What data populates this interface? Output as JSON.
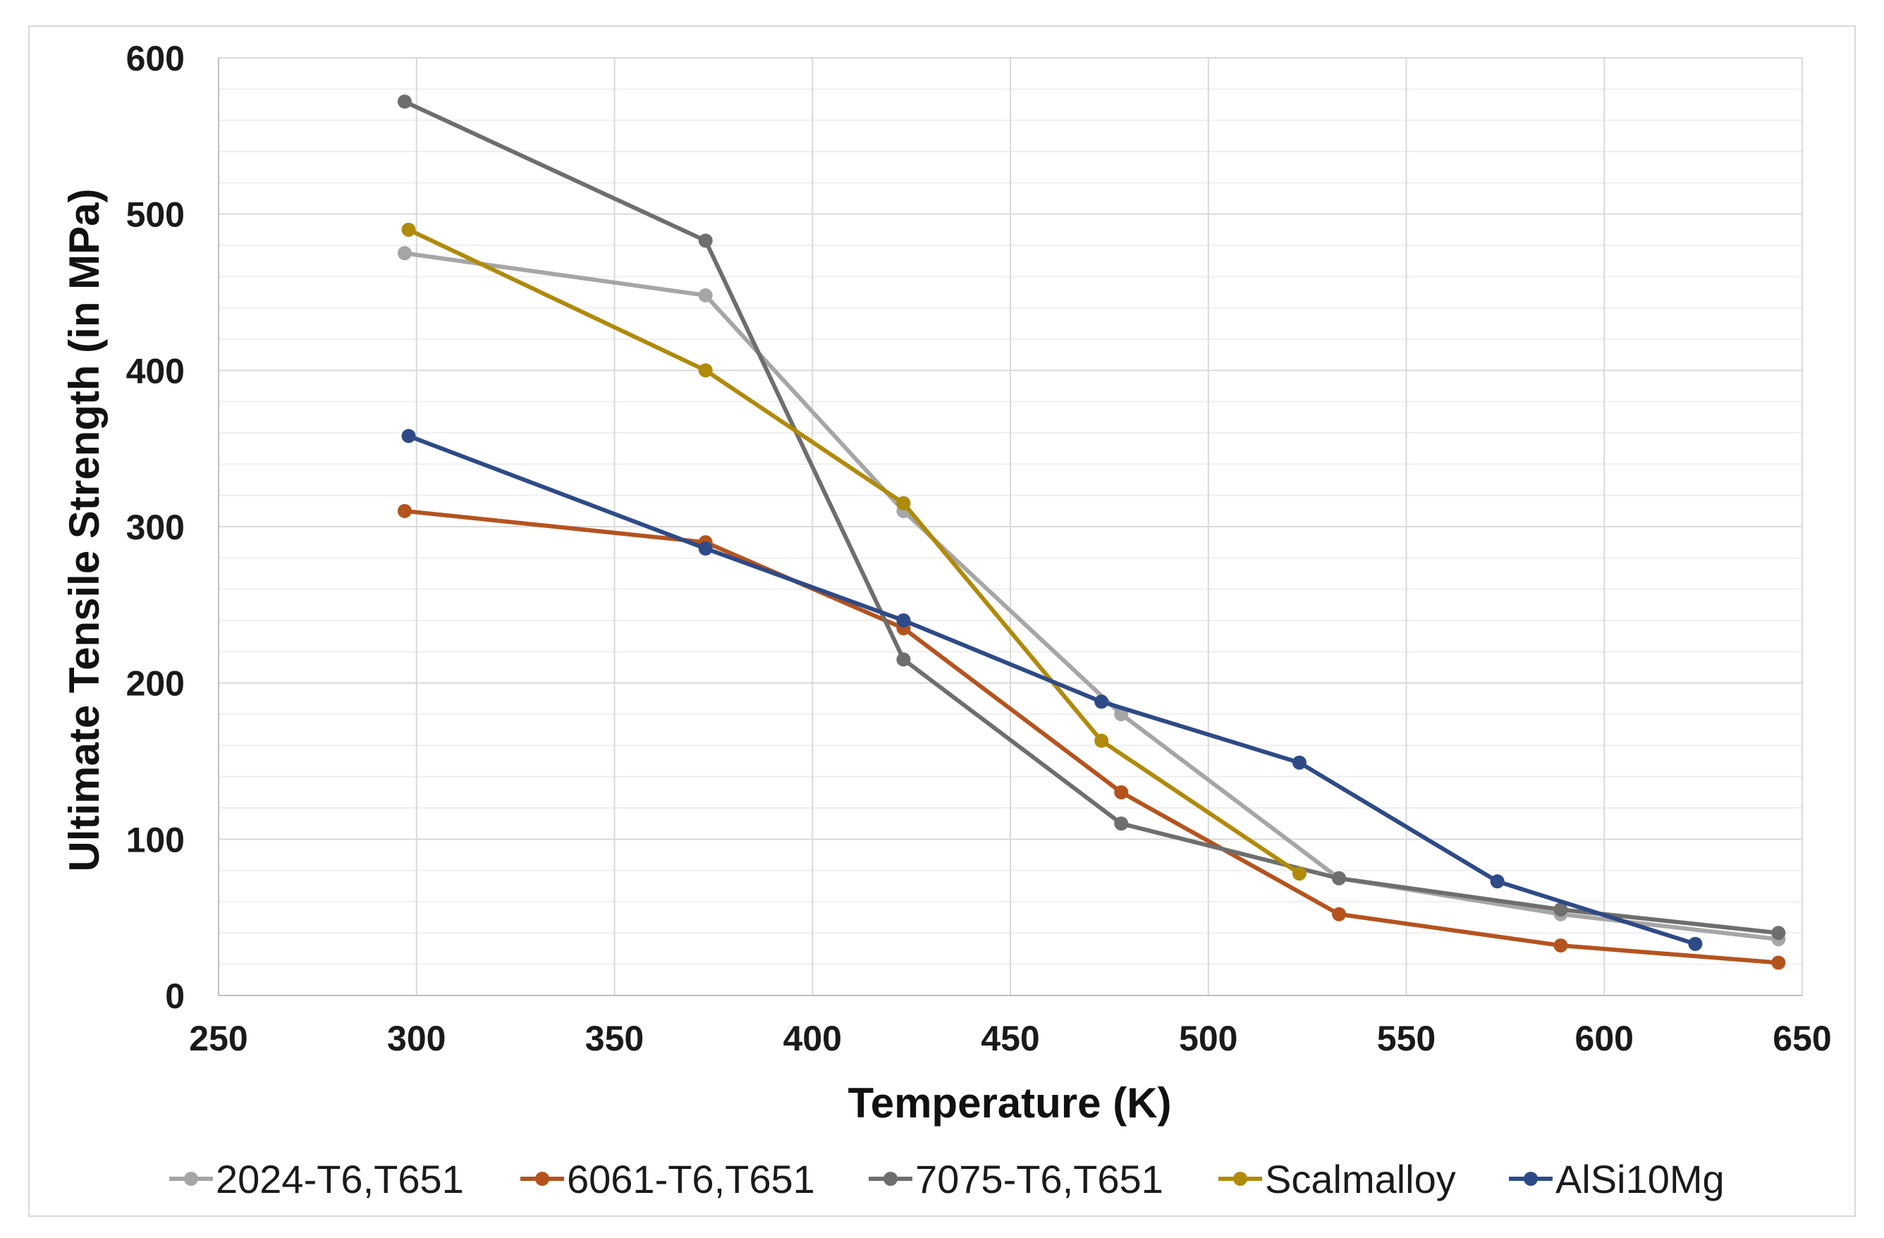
{
  "chart_data": {
    "type": "line",
    "title": "",
    "xlabel": "Temperature (K)",
    "ylabel": "Ultimate Tensile Strength (in MPa)",
    "xlim": [
      250,
      650
    ],
    "ylim": [
      0,
      600
    ],
    "x_ticks": [
      250,
      300,
      350,
      400,
      450,
      500,
      550,
      600,
      650
    ],
    "y_ticks": [
      0,
      100,
      200,
      300,
      400,
      500,
      600
    ],
    "grid": true,
    "legend_position": "bottom",
    "series": [
      {
        "name": "2024-T6,T651",
        "color": "#a6a6a6",
        "x": [
          297,
          373,
          423,
          478,
          533,
          589,
          644
        ],
        "y": [
          475,
          448,
          310,
          180,
          75,
          52,
          36
        ]
      },
      {
        "name": "6061-T6,T651",
        "color": "#b5531e",
        "x": [
          297,
          373,
          423,
          478,
          533,
          589,
          644
        ],
        "y": [
          310,
          290,
          235,
          130,
          52,
          32,
          21
        ]
      },
      {
        "name": "7075-T6,T651",
        "color": "#6e6e6e",
        "x": [
          297,
          373,
          423,
          478,
          533,
          589,
          644
        ],
        "y": [
          572,
          483,
          215,
          110,
          75,
          55,
          40
        ]
      },
      {
        "name": "Scalmalloy",
        "color": "#b08a0a",
        "x": [
          298,
          373,
          423,
          473,
          523
        ],
        "y": [
          490,
          400,
          315,
          163,
          78
        ]
      },
      {
        "name": "AlSi10Mg",
        "color": "#2e4a87",
        "x": [
          298,
          373,
          423,
          473,
          523,
          573,
          623
        ],
        "y": [
          358,
          286,
          240,
          188,
          149,
          73,
          33
        ]
      }
    ]
  }
}
